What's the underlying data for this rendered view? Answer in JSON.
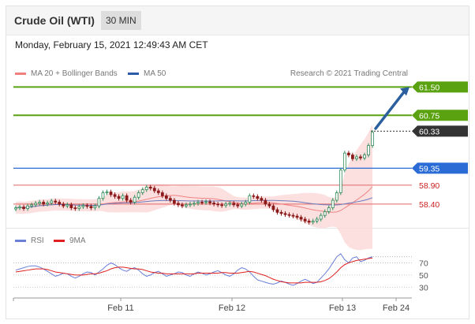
{
  "header": {
    "title": "Crude Oil (WTI)",
    "timeframe": "30 MIN"
  },
  "timestamp": "Monday, February 15, 2021 12:49:43 AM CET",
  "legend": {
    "ma20": {
      "label": "MA 20 + Bollinger Bands",
      "color": "#f08080"
    },
    "ma50": {
      "label": "MA 50",
      "color": "#2b5aa8"
    }
  },
  "credit": "Research © 2021 Trading Central",
  "rsi_legend": {
    "rsi": {
      "label": "RSI",
      "color": "#6a7fd6"
    },
    "ma9": {
      "label": "9MA",
      "color": "#e02020"
    }
  },
  "colors": {
    "support": "#2a6bd6",
    "resistance": "#5aa210",
    "pivot": "#e06666",
    "price": "#333333",
    "arrow": "#2b5f9e",
    "up": "#2e8b57",
    "down": "#8b1a1a"
  },
  "chart_data": [
    {
      "type": "candlestick",
      "ylim": [
        58.0,
        61.8
      ],
      "x_ticks": [
        "Feb 11",
        "Feb 12",
        "Feb 13",
        "Feb 24"
      ],
      "closes": [
        58.3,
        58.32,
        58.28,
        58.35,
        58.38,
        58.42,
        58.45,
        58.4,
        58.43,
        58.48,
        58.45,
        58.4,
        58.35,
        58.38,
        58.3,
        58.28,
        58.33,
        58.36,
        58.34,
        58.3,
        58.35,
        58.55,
        58.7,
        58.72,
        58.65,
        58.6,
        58.55,
        58.62,
        58.5,
        58.45,
        58.58,
        58.7,
        58.78,
        58.85,
        58.82,
        58.75,
        58.7,
        58.62,
        58.55,
        58.5,
        58.42,
        58.38,
        58.35,
        58.38,
        58.4,
        58.42,
        58.45,
        58.44,
        58.46,
        58.43,
        58.4,
        58.38,
        58.36,
        58.4,
        58.42,
        58.38,
        58.35,
        58.4,
        58.45,
        58.62,
        58.6,
        58.55,
        58.5,
        58.4,
        58.35,
        58.25,
        58.18,
        58.15,
        58.12,
        58.1,
        58.08,
        58.05,
        58.0,
        57.95,
        57.92,
        57.95,
        58.0,
        58.1,
        58.2,
        58.3,
        58.5,
        58.7,
        59.3,
        59.75,
        59.7,
        59.6,
        59.65,
        59.62,
        59.7,
        59.95,
        60.3
      ],
      "series": [
        {
          "name": "MA 20 + Bollinger Bands"
        },
        {
          "name": "MA 50"
        }
      ],
      "levels": [
        {
          "value": "61.50",
          "kind": "resistance"
        },
        {
          "value": "60.75",
          "kind": "resistance"
        },
        {
          "value": "60.33",
          "kind": "price"
        },
        {
          "value": "59.35",
          "kind": "support"
        },
        {
          "value": "58.90",
          "kind": "pivot"
        },
        {
          "value": "58.40",
          "kind": "pivot"
        }
      ],
      "forecast_arrow": {
        "from": 60.4,
        "to": 61.5
      }
    },
    {
      "type": "line",
      "y_ticks": [
        "70",
        "50",
        "30"
      ],
      "rsi": [
        58,
        60,
        62,
        64,
        65,
        65,
        63,
        60,
        56,
        52,
        48,
        50,
        53,
        52,
        48,
        45,
        48,
        52,
        55,
        54,
        50,
        55,
        60,
        66,
        70,
        67,
        62,
        58,
        56,
        60,
        62,
        58,
        52,
        48,
        50,
        54,
        56,
        52,
        48,
        50,
        52,
        55,
        54,
        50,
        48,
        52,
        55,
        53,
        50,
        52,
        55,
        57,
        54,
        50,
        48,
        52,
        58,
        62,
        60,
        55,
        48,
        42,
        40,
        38,
        36,
        35,
        37,
        40,
        38,
        35,
        33,
        36,
        40,
        43,
        40,
        36,
        38,
        45,
        52,
        60,
        70,
        80,
        85,
        75,
        70,
        78,
        80,
        72,
        74,
        78,
        80
      ],
      "ma9": [
        55,
        56,
        57,
        58,
        59,
        60,
        60,
        60,
        59,
        57,
        55,
        54,
        53,
        52,
        51,
        50,
        50,
        50,
        51,
        52,
        52,
        53,
        55,
        57,
        60,
        62,
        63,
        63,
        62,
        61,
        60,
        60,
        59,
        57,
        55,
        54,
        53,
        53,
        52,
        52,
        52,
        52,
        52,
        52,
        52,
        52,
        53,
        53,
        53,
        53,
        53,
        53,
        54,
        54,
        53,
        53,
        53,
        54,
        55,
        56,
        55,
        53,
        51,
        49,
        46,
        43,
        41,
        39,
        38,
        37,
        37,
        37,
        37,
        38,
        38,
        38,
        38,
        39,
        41,
        44,
        49,
        55,
        62,
        67,
        70,
        72,
        74,
        75,
        76,
        77,
        78
      ]
    }
  ]
}
